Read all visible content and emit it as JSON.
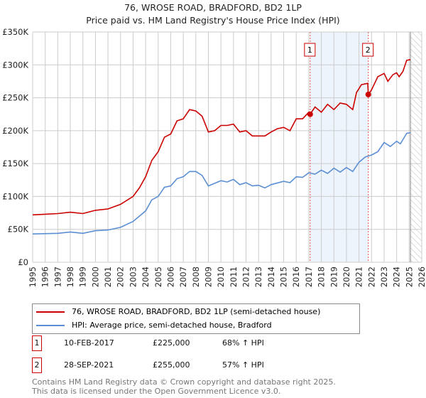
{
  "chart_data": {
    "type": "line",
    "title": "76, WROSE ROAD, BRADFORD, BD2 1LP",
    "subtitle": "Price paid vs. HM Land Registry's House Price Index (HPI)",
    "xlim": [
      1995,
      2026
    ],
    "ylim": [
      0,
      350000
    ],
    "yticks": [
      0,
      50000,
      100000,
      150000,
      200000,
      250000,
      300000,
      350000
    ],
    "ytick_labels": [
      "£0",
      "£50K",
      "£100K",
      "£150K",
      "£200K",
      "£250K",
      "£300K",
      "£350K"
    ],
    "xticks": [
      "1995",
      "1996",
      "1997",
      "1998",
      "1999",
      "2000",
      "2001",
      "2002",
      "2003",
      "2004",
      "2005",
      "2006",
      "2007",
      "2008",
      "2009",
      "2010",
      "2011",
      "2012",
      "2013",
      "2014",
      "2015",
      "2016",
      "2017",
      "2018",
      "2019",
      "2020",
      "2021",
      "2022",
      "2023",
      "2024",
      "2025",
      "2026"
    ],
    "grid": true,
    "shaded_range": [
      2017.11,
      2021.74
    ],
    "hatched_from": 2025.1,
    "series": [
      {
        "name": "76, WROSE ROAD, BRADFORD, BD2 1LP (semi-detached house)",
        "color": "#cc0000",
        "x": [
          1995,
          1996,
          1997,
          1998,
          1999,
          2000,
          2001,
          2002,
          2003,
          2003.5,
          2004,
          2004.5,
          2005,
          2005.5,
          2006,
          2006.5,
          2007,
          2007.5,
          2008,
          2008.5,
          2009,
          2009.5,
          2010,
          2010.5,
          2011,
          2011.5,
          2012,
          2012.5,
          2013,
          2013.5,
          2014,
          2014.5,
          2015,
          2015.5,
          2016,
          2016.5,
          2017,
          2017.11,
          2017.5,
          2018,
          2018.5,
          2019,
          2019.5,
          2020,
          2020.5,
          2020.8,
          2021.2,
          2021.7,
          2021.74,
          2022,
          2022.5,
          2023,
          2023.3,
          2023.7,
          2024,
          2024.2,
          2024.5,
          2024.8,
          2025.1
        ],
        "y": [
          72,
          73,
          74,
          76,
          74,
          79,
          81,
          88,
          100,
          113,
          130,
          155,
          168,
          190,
          195,
          215,
          218,
          232,
          230,
          222,
          198,
          200,
          208,
          208,
          210,
          198,
          200,
          192,
          192,
          192,
          198,
          203,
          205,
          200,
          218,
          218,
          228,
          225,
          236,
          228,
          240,
          232,
          242,
          240,
          232,
          258,
          270,
          272,
          255,
          262,
          282,
          287,
          275,
          285,
          288,
          282,
          290,
          307,
          308
        ]
      },
      {
        "name": "HPI: Average price, semi-detached house, Bradford",
        "color": "#5b8fd4",
        "x": [
          1995,
          1997,
          1998,
          1999,
          2000,
          2001,
          2002,
          2003,
          2004,
          2004.5,
          2005,
          2005.5,
          2006,
          2006.5,
          2007,
          2007.5,
          2008,
          2008.5,
          2009,
          2010,
          2010.5,
          2011,
          2011.5,
          2012,
          2012.5,
          2013,
          2013.5,
          2014,
          2015,
          2015.5,
          2016,
          2016.5,
          2017,
          2017.5,
          2018,
          2018.5,
          2019,
          2019.5,
          2020,
          2020.5,
          2021,
          2021.5,
          2022,
          2022.5,
          2023,
          2023.5,
          2024,
          2024.3,
          2024.8,
          2025.1
        ],
        "y": [
          43,
          44,
          46,
          44,
          48,
          49,
          53,
          62,
          78,
          95,
          100,
          114,
          116,
          127,
          130,
          138,
          138,
          132,
          116,
          124,
          122,
          126,
          118,
          121,
          116,
          117,
          113,
          118,
          123,
          121,
          130,
          129,
          136,
          134,
          140,
          135,
          143,
          137,
          144,
          138,
          152,
          160,
          163,
          168,
          182,
          176,
          184,
          180,
          196,
          197
        ]
      }
    ],
    "y_units": 1000,
    "sales": [
      {
        "id": "1",
        "x": 2017.11,
        "price": 225000,
        "date": "10-FEB-2017",
        "price_label": "£225,000",
        "hpi": "68% ↑ HPI"
      },
      {
        "id": "2",
        "x": 2021.74,
        "price": 255000,
        "date": "28-SEP-2021",
        "price_label": "£255,000",
        "hpi": "57% ↑ HPI"
      }
    ]
  },
  "footer": {
    "line1": "Contains HM Land Registry data © Crown copyright and database right 2025.",
    "line2": "This data is licensed under the Open Government Licence v3.0."
  }
}
